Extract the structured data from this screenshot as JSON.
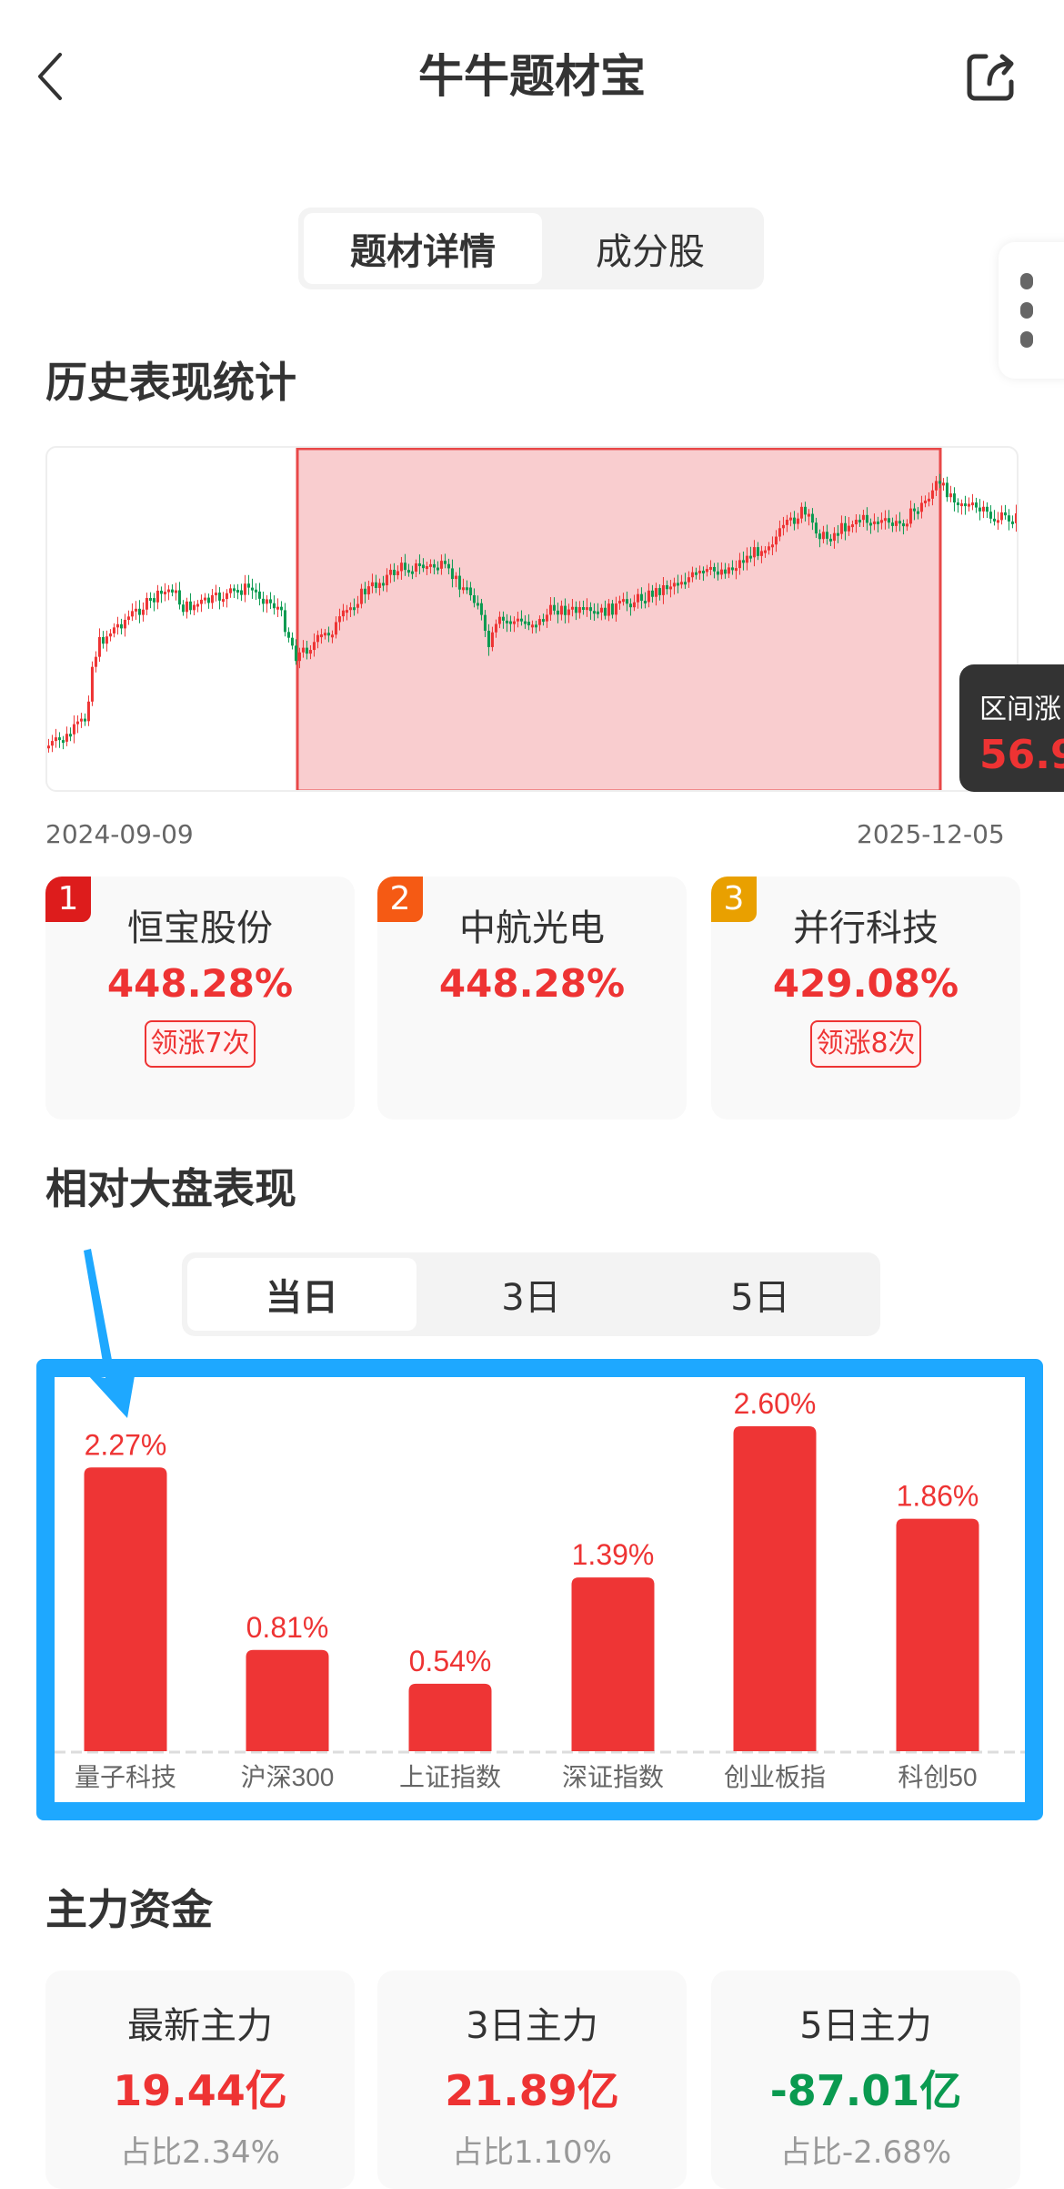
{
  "header": {
    "title": "牛牛题材宝",
    "back_icon": "chevron-left-icon",
    "share_icon": "share-icon"
  },
  "main_tabs": [
    {
      "label": "题材详情",
      "active": true
    },
    {
      "label": "成分股",
      "active": false
    }
  ],
  "history": {
    "title": "历史表现统计",
    "start_date": "2024-09-09",
    "end_date": "2025-12-05",
    "tooltip": {
      "label": "区间涨",
      "value": "56.9"
    },
    "colors": {
      "up": "#ee3333",
      "down": "#0a9a50",
      "highlight": "#f9cdcf"
    },
    "top_stocks": [
      {
        "rank": "1",
        "name": "恒宝股份",
        "pct": "448.28%",
        "tag": "领涨7次",
        "badge_color": "#dd1c1c"
      },
      {
        "rank": "2",
        "name": "中航光电",
        "pct": "448.28%",
        "tag": "",
        "badge_color": "#f55a14"
      },
      {
        "rank": "3",
        "name": "并行科技",
        "pct": "429.08%",
        "tag": "领涨8次",
        "badge_color": "#e9a000"
      }
    ]
  },
  "relative": {
    "title": "相对大盘表现",
    "tabs": [
      {
        "label": "当日",
        "active": true
      },
      {
        "label": "3日",
        "active": false
      },
      {
        "label": "5日",
        "active": false
      }
    ]
  },
  "chart_data": {
    "type": "bar",
    "categories": [
      "量子科技",
      "沪深300",
      "上证指数",
      "深证指数",
      "创业板指",
      "科创50"
    ],
    "values": [
      2.27,
      0.81,
      0.54,
      1.39,
      2.6,
      1.86
    ],
    "value_labels": [
      "2.27%",
      "0.81%",
      "0.54%",
      "1.39%",
      "2.60%",
      "1.86%"
    ],
    "unit": "%",
    "bar_color": "#ee3535",
    "ylim": [
      0,
      2.6
    ],
    "grid": false
  },
  "annotation": {
    "highlight_color": "#1EA8FF"
  },
  "funds": {
    "title": "主力资金",
    "items": [
      {
        "label": "最新主力",
        "value": "19.44亿",
        "ratio": "占比2.34%",
        "color": "#ee3333"
      },
      {
        "label": "3日主力",
        "value": "21.89亿",
        "ratio": "占比1.10%",
        "color": "#ee3333"
      },
      {
        "label": "5日主力",
        "value": "-87.01亿",
        "ratio": "占比-2.68%",
        "color": "#0a9a50"
      }
    ]
  }
}
